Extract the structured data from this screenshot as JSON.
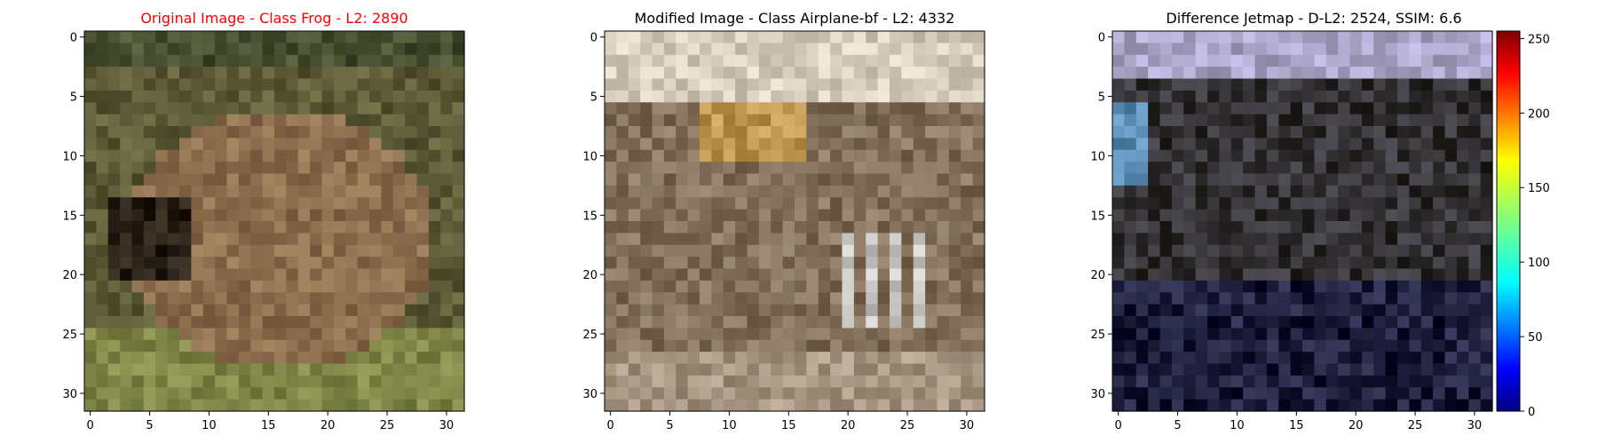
{
  "figure": {
    "panels": [
      {
        "title": "Original Image - Class Frog - L2: 2890",
        "title_color": "#ff0000"
      },
      {
        "title": "Modified Image - Class Airplane-bf - L2: 4332",
        "title_color": "#000000"
      },
      {
        "title": "Difference Jetmap - D-L2: 2524, SSIM: 6.6",
        "title_color": "#000000"
      }
    ]
  },
  "chart_data": [
    {
      "type": "heatmap",
      "title": "Original Image - Class Frog - L2: 2890",
      "xlabel": "",
      "ylabel": "",
      "xlim": [
        -0.5,
        31.5
      ],
      "ylim": [
        31.5,
        -0.5
      ],
      "xticks": [
        0,
        5,
        10,
        15,
        20,
        25,
        30
      ],
      "yticks": [
        0,
        5,
        10,
        15,
        20,
        25,
        30
      ],
      "grid": false,
      "content": "32x32 RGB image of a frog (brown/olive tones)"
    },
    {
      "type": "heatmap",
      "title": "Modified Image - Class Airplane-bf - L2: 4332",
      "xlabel": "",
      "ylabel": "",
      "xlim": [
        -0.5,
        31.5
      ],
      "ylim": [
        31.5,
        -0.5
      ],
      "xticks": [
        0,
        5,
        10,
        15,
        20,
        25,
        30
      ],
      "yticks": [
        0,
        5,
        10,
        15,
        20,
        25,
        30
      ],
      "grid": false,
      "content": "32x32 RGB image, perturbed frog with light/greyish tones"
    },
    {
      "type": "heatmap",
      "title": "Difference Jetmap - D-L2: 2524, SSIM: 6.6",
      "xlabel": "",
      "ylabel": "",
      "xlim": [
        -0.5,
        31.5
      ],
      "ylim": [
        31.5,
        -0.5
      ],
      "xticks": [
        0,
        5,
        10,
        15,
        20,
        25,
        30
      ],
      "yticks": [
        0,
        5,
        10,
        15,
        20,
        25,
        30
      ],
      "grid": false,
      "colorbar": {
        "colormap": "jet",
        "range": [
          0,
          255
        ],
        "ticks": [
          0,
          50,
          100,
          150,
          200,
          250
        ]
      }
    }
  ]
}
